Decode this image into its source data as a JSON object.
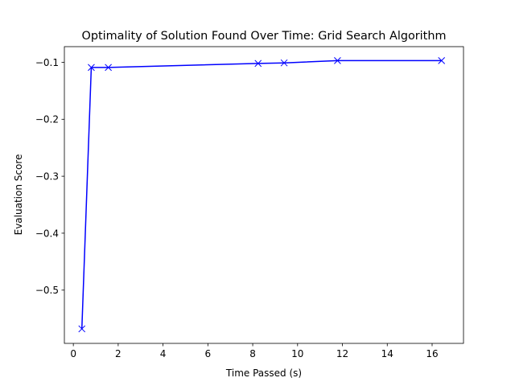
{
  "chart_data": {
    "type": "line",
    "title": "Optimality of Solution Found Over Time: Grid Search Algorithm",
    "xlabel": "Time Passed (s)",
    "ylabel": "Evaluation Score",
    "xlim": [
      -0.4,
      17.4
    ],
    "ylim": [
      -0.5935,
      -0.0725
    ],
    "x_ticks": [
      0,
      2,
      4,
      6,
      8,
      10,
      12,
      14,
      16
    ],
    "x_tick_labels": [
      "0",
      "2",
      "4",
      "6",
      "8",
      "10",
      "12",
      "14",
      "16"
    ],
    "y_ticks": [
      -0.5,
      -0.4,
      -0.3,
      -0.2,
      -0.1
    ],
    "y_tick_labels": [
      "−0.5",
      "−0.4",
      "−0.3",
      "−0.2",
      "−0.1"
    ],
    "grid": false,
    "legend": "none",
    "series": [
      {
        "color": "#0000ff",
        "marker": "x",
        "x": [
          0.38,
          0.8,
          1.56,
          8.24,
          9.4,
          11.78,
          16.42
        ],
        "y": [
          -0.568,
          -0.109,
          -0.109,
          -0.102,
          -0.101,
          -0.097,
          -0.097
        ]
      }
    ]
  }
}
